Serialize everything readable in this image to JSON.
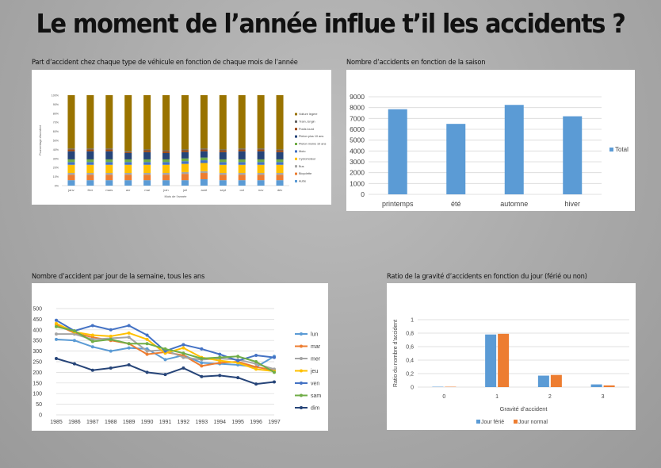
{
  "page": {
    "title": "Le moment de l’année influe t’il les accidents ?"
  },
  "chart_data": [
    {
      "id": "chart1",
      "type": "bar",
      "stacked": true,
      "panel_title": "Part d’accident chez chaque type de véhicule en fonction de chaque mois de l’année",
      "title": "",
      "xlabel": "Mois de l’année",
      "ylabel": "Pourcentage d’accident",
      "ylim": [
        0,
        100
      ],
      "yticks": [
        "0%",
        "10%",
        "20%",
        "30%",
        "40%",
        "50%",
        "60%",
        "70%",
        "80%",
        "90%",
        "100%"
      ],
      "categories": [
        "janv",
        "févr",
        "mars",
        "avr",
        "mai",
        "juin",
        "juil",
        "août",
        "sept",
        "oct",
        "nov",
        "déc"
      ],
      "legend_position": "right",
      "series": [
        {
          "name": "Autre",
          "color": "#5b9bd5",
          "values": [
            6,
            6,
            6,
            6,
            6,
            6,
            6,
            7,
            6,
            6,
            6,
            6
          ]
        },
        {
          "name": "Bicyclette",
          "color": "#ed7d31",
          "values": [
            6,
            6,
            6,
            6,
            6,
            6,
            7,
            7,
            6,
            6,
            6,
            6
          ]
        },
        {
          "name": "Bus",
          "color": "#a5a5a5",
          "values": [
            2,
            2,
            2,
            2,
            2,
            2,
            2,
            2,
            2,
            2,
            2,
            2
          ]
        },
        {
          "name": "Cyclomoteur",
          "color": "#ffc000",
          "values": [
            9,
            9,
            9,
            9,
            9,
            9,
            9,
            9,
            9,
            9,
            9,
            9
          ]
        },
        {
          "name": "Moto",
          "color": "#4472c4",
          "values": [
            3,
            3,
            3,
            3,
            3,
            3,
            3,
            3,
            3,
            3,
            3,
            3
          ]
        },
        {
          "name": "Pieton moins 10 ans",
          "color": "#70ad47",
          "values": [
            3,
            3,
            3,
            3,
            3,
            3,
            3,
            3,
            3,
            3,
            3,
            3
          ]
        },
        {
          "name": "Pieton plus 10 ans",
          "color": "#264478",
          "values": [
            9,
            9,
            9,
            7,
            8,
            7,
            7,
            7,
            8,
            9,
            9,
            8
          ]
        },
        {
          "name": "Poids lourd",
          "color": "#9e480e",
          "values": [
            2,
            2,
            2,
            1,
            2,
            2,
            2,
            2,
            2,
            2,
            2,
            2
          ]
        },
        {
          "name": "Tram, Engin",
          "color": "#636363",
          "values": [
            1,
            1,
            1,
            1,
            1,
            1,
            1,
            1,
            1,
            1,
            1,
            1
          ]
        },
        {
          "name": "Voiture legere",
          "color": "#997300",
          "values": [
            59,
            59,
            59,
            62,
            60,
            61,
            60,
            59,
            60,
            59,
            59,
            60
          ]
        }
      ]
    },
    {
      "id": "chart2",
      "type": "bar",
      "panel_title": "Nombre d’accidents en fonction de la saison",
      "title": "",
      "categories": [
        "printemps",
        "été",
        "automne",
        "hiver"
      ],
      "series": [
        {
          "name": "Total",
          "color": "#5b9bd5",
          "values": [
            7850,
            6500,
            8250,
            7200
          ]
        }
      ],
      "ylim": [
        0,
        9000
      ],
      "yticks": [
        "0",
        "1000",
        "2000",
        "3000",
        "4000",
        "5000",
        "6000",
        "7000",
        "8000",
        "9000"
      ],
      "legend_position": "right",
      "grid": true
    },
    {
      "id": "chart3",
      "type": "line",
      "panel_title": "Nombre d’accident par jour de la semaine, tous les ans",
      "title": "",
      "x": [
        "1985",
        "1986",
        "1987",
        "1988",
        "1989",
        "1990",
        "1991",
        "1992",
        "1993",
        "1994",
        "1995",
        "1996",
        "1997"
      ],
      "ylim": [
        0,
        500
      ],
      "yticks": [
        "0",
        "50",
        "100",
        "150",
        "200",
        "250",
        "300",
        "350",
        "400",
        "450",
        "500"
      ],
      "legend_position": "right",
      "grid": true,
      "series": [
        {
          "name": "lun",
          "color": "#5b9bd5",
          "values": [
            355,
            350,
            320,
            300,
            315,
            310,
            260,
            280,
            245,
            240,
            235,
            225,
            275
          ]
        },
        {
          "name": "mar",
          "color": "#ed7d31",
          "values": [
            425,
            385,
            365,
            350,
            335,
            285,
            295,
            280,
            230,
            245,
            250,
            225,
            210
          ]
        },
        {
          "name": "mer",
          "color": "#a5a5a5",
          "values": [
            380,
            380,
            355,
            360,
            365,
            300,
            305,
            270,
            260,
            265,
            260,
            240,
            215
          ]
        },
        {
          "name": "jeu",
          "color": "#ffc000",
          "values": [
            430,
            390,
            375,
            370,
            385,
            355,
            290,
            315,
            270,
            255,
            245,
            215,
            205
          ]
        },
        {
          "name": "ven",
          "color": "#4472c4",
          "values": [
            445,
            395,
            420,
            400,
            420,
            375,
            300,
            330,
            310,
            285,
            255,
            280,
            270
          ]
        },
        {
          "name": "sam",
          "color": "#70ad47",
          "values": [
            415,
            395,
            345,
            355,
            335,
            335,
            310,
            290,
            265,
            270,
            275,
            250,
            200
          ]
        },
        {
          "name": "dim",
          "color": "#264478",
          "values": [
            265,
            240,
            210,
            220,
            235,
            200,
            190,
            220,
            180,
            185,
            175,
            145,
            155
          ]
        }
      ]
    },
    {
      "id": "chart4",
      "type": "bar",
      "panel_title": "Ratio de la gravité d’accidents en fonction du jour (férié ou non)",
      "title": "",
      "xlabel": "Gravité d’accident",
      "ylabel": "Ratio du nombre d’accident",
      "categories": [
        "0",
        "1",
        "2",
        "3"
      ],
      "ylim": [
        0,
        1
      ],
      "yticks": [
        "0",
        "0,2",
        "0,4",
        "0,6",
        "0,8",
        "1"
      ],
      "legend_position": "bottom",
      "grid": true,
      "series": [
        {
          "name": "Jour férié",
          "color": "#5b9bd5",
          "values": [
            0.005,
            0.78,
            0.17,
            0.04
          ]
        },
        {
          "name": "Jour normal",
          "color": "#ed7d31",
          "values": [
            0.005,
            0.79,
            0.18,
            0.025
          ]
        }
      ]
    }
  ]
}
